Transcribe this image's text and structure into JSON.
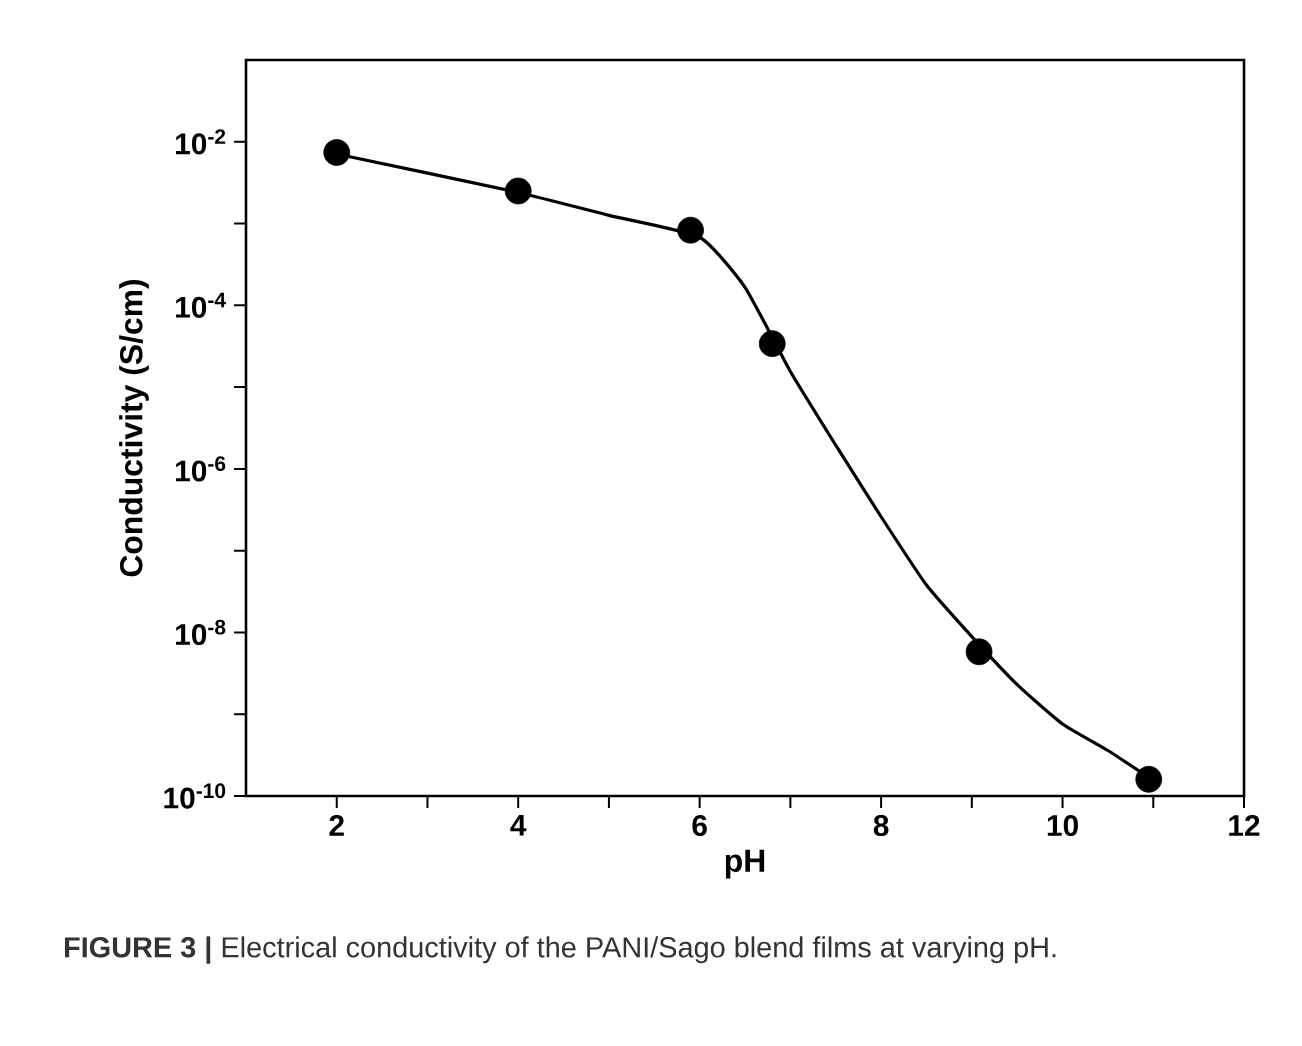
{
  "chart_data": {
    "type": "scatter",
    "xlabel": "pH",
    "ylabel": "Conductivity (S/cm)",
    "log": "y",
    "xlim": [
      1,
      12
    ],
    "ylim": [
      1e-10,
      0.1
    ],
    "xticks": [
      2,
      {
        "value": 3,
        "label": null
      },
      4,
      {
        "value": 5,
        "label": null
      },
      6,
      {
        "value": 7,
        "label": null
      },
      8,
      {
        "value": 9,
        "label": null
      },
      10,
      {
        "value": 11,
        "label": null
      },
      12
    ],
    "yticks": [
      {
        "value": 1e-10,
        "label": "10$^{-10}$"
      },
      {
        "value": 1e-09,
        "label": null
      },
      {
        "value": 1e-08,
        "label": "10$^{-8}$"
      },
      {
        "value": 1e-07,
        "label": null
      },
      {
        "value": 1e-06,
        "label": "10$^{-6}$"
      },
      {
        "value": 1e-05,
        "label": null
      },
      {
        "value": 0.0001,
        "label": "10$^{-4}$"
      },
      {
        "value": 0.001,
        "label": null
      },
      {
        "value": 0.01,
        "label": "10$^{-2}$"
      }
    ],
    "series": [
      {
        "color": "#000000",
        "marker": "circle",
        "x": [
          2,
          4,
          5.9,
          6.8,
          9.08,
          10.95
        ],
        "values": [
          0.0074,
          0.0025,
          0.00083,
          3.4e-05,
          5.8e-09,
          1.6e-10
        ]
      },
      {
        "type": "line",
        "color": "#000000",
        "marker": "none",
        "x": [
          2,
          4,
          5,
          6,
          6.5,
          7,
          7.5,
          8,
          8.5,
          9,
          9.5,
          10,
          10.5,
          11
        ],
        "values": [
          0.0071,
          0.0024,
          0.00126,
          0.00068,
          0.000166,
          1.55e-05,
          1.95e-06,
          2.6e-07,
          3.8e-08,
          8.9e-09,
          2.3e-09,
          7.6e-10,
          3.6e-10,
          1.55e-10
        ]
      }
    ],
    "annotations": [
      "**FIGURE 3 |** Electrical conductivity of the PANI/Sago blend films at varying pH."
    ]
  }
}
